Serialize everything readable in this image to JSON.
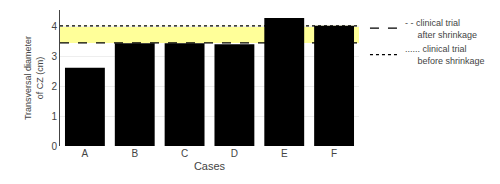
{
  "chart_data": {
    "type": "bar",
    "categories": [
      "A",
      "B",
      "C",
      "D",
      "E",
      "F"
    ],
    "values": [
      2.62,
      3.44,
      3.44,
      3.4,
      4.28,
      4.02
    ],
    "color": "#000000",
    "xlabel": "Cases",
    "ylabel": "Transversal diameter\nof CZ (cm)",
    "ylim": [
      0,
      4.55
    ],
    "yticks": [
      0,
      1,
      2,
      3,
      4
    ],
    "grid": true,
    "legend": "right",
    "band": {
      "from": 3.45,
      "to": 4.02,
      "color": "#ffff99"
    },
    "reference_lines": [
      {
        "name": "- - clinical trial\n     after shrinkage",
        "value": 3.45,
        "line_style": "dashed",
        "color": "#000000"
      },
      {
        "name": "...... clinical trial\n     before shrinkage",
        "value": 4.02,
        "line_style": "dotted",
        "color": "#000000"
      }
    ]
  }
}
